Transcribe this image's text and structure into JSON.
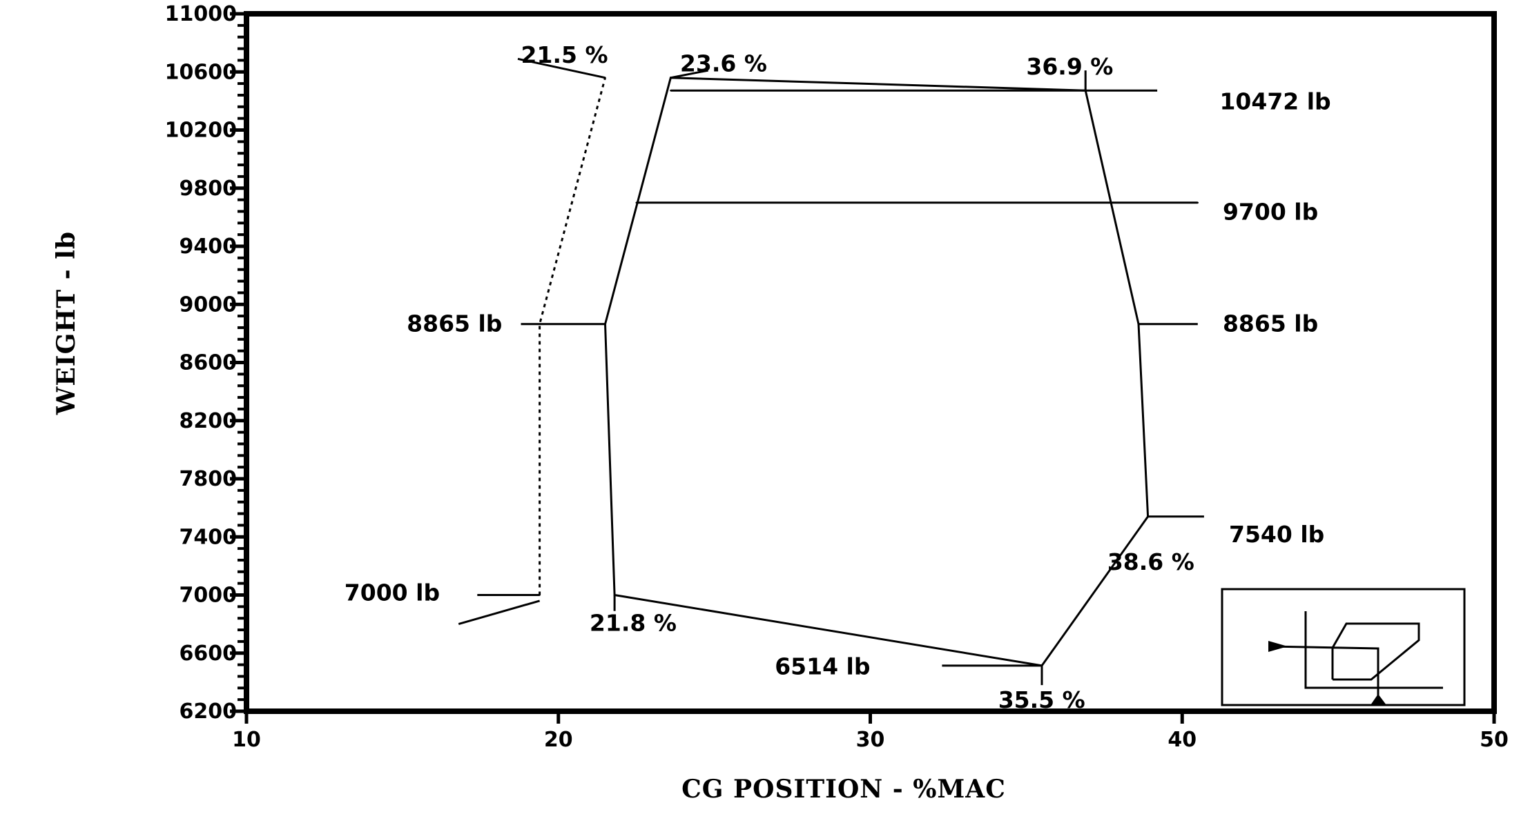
{
  "chart_data": {
    "type": "line",
    "xlabel": "CG POSITION - %MAC",
    "ylabel": "WEIGHT - lb",
    "xlim": [
      10,
      50
    ],
    "ylim": [
      6200,
      11000
    ],
    "x_ticks": [
      "10",
      "20",
      "30",
      "40",
      "50"
    ],
    "y_ticks": [
      "6200",
      "6600",
      "7000",
      "7400",
      "7800",
      "8200",
      "8600",
      "9000",
      "9400",
      "9800",
      "10200",
      "10600",
      "11000"
    ],
    "grid": false,
    "series": [
      {
        "style": "solid",
        "points": [
          {
            "x": 21.5,
            "y": 8865
          },
          {
            "x": 23.6,
            "y": 10560
          },
          {
            "x": 36.9,
            "y": 10472
          },
          {
            "x": 38.6,
            "y": 8865
          },
          {
            "x": 38.9,
            "y": 7540
          },
          {
            "x": 35.5,
            "y": 6514
          },
          {
            "x": 21.8,
            "y": 7000
          },
          {
            "x": 21.5,
            "y": 8865
          }
        ]
      },
      {
        "style": "dotted",
        "points": [
          {
            "x": 19.4,
            "y": 7000
          },
          {
            "x": 19.4,
            "y": 8865
          },
          {
            "x": 21.5,
            "y": 10560
          }
        ]
      },
      {
        "style": "solid",
        "points": [
          {
            "x": 23.6,
            "y": 10472
          },
          {
            "x": 36.9,
            "y": 10472
          }
        ]
      },
      {
        "style": "solid",
        "points": [
          {
            "x": 22.5,
            "y": 9700
          },
          {
            "x": 40.5,
            "y": 9700
          }
        ]
      }
    ],
    "annotations": [
      {
        "id": "a215",
        "text": "21.5 %",
        "x": 18.8,
        "y": 10720,
        "anchor": "start"
      },
      {
        "id": "a236",
        "text": "23.6 %",
        "x": 23.9,
        "y": 10660,
        "anchor": "start"
      },
      {
        "id": "a369",
        "text": "36.9 %",
        "x": 35.0,
        "y": 10640,
        "anchor": "start"
      },
      {
        "id": "a10472",
        "text": "10472 lb",
        "x": 41.2,
        "y": 10400,
        "anchor": "start"
      },
      {
        "id": "a9700",
        "text": "9700 lb",
        "x": 41.3,
        "y": 9640,
        "anchor": "start"
      },
      {
        "id": "a8865l",
        "text": "8865 lb",
        "x": 18.2,
        "y": 8870,
        "anchor": "end"
      },
      {
        "id": "a8865r",
        "text": "8865 lb",
        "x": 41.3,
        "y": 8870,
        "anchor": "start"
      },
      {
        "id": "a7540",
        "text": "7540 lb",
        "x": 41.5,
        "y": 7420,
        "anchor": "start"
      },
      {
        "id": "a386",
        "text": "38.6 %",
        "x": 37.6,
        "y": 7230,
        "anchor": "start"
      },
      {
        "id": "a7000",
        "text": "7000 lb",
        "x": 16.2,
        "y": 7020,
        "anchor": "end"
      },
      {
        "id": "a218",
        "text": "21.8 %",
        "x": 21.0,
        "y": 6810,
        "anchor": "start"
      },
      {
        "id": "a6514",
        "text": "6514 lb",
        "x": 30.0,
        "y": 6510,
        "anchor": "end"
      },
      {
        "id": "a355",
        "text": "35.5 %",
        "x": 34.1,
        "y": 6280,
        "anchor": "start"
      }
    ],
    "leaders": [
      {
        "style": "solid",
        "points": [
          {
            "x": 18.7,
            "y": 10690
          },
          {
            "x": 21.5,
            "y": 10560
          }
        ]
      },
      {
        "style": "solid",
        "points": [
          {
            "x": 23.6,
            "y": 10560
          },
          {
            "x": 24.8,
            "y": 10610
          }
        ]
      },
      {
        "style": "solid",
        "points": [
          {
            "x": 36.9,
            "y": 10472
          },
          {
            "x": 36.9,
            "y": 10610
          }
        ]
      },
      {
        "style": "solid",
        "points": [
          {
            "x": 36.9,
            "y": 10472
          },
          {
            "x": 39.2,
            "y": 10472
          }
        ]
      },
      {
        "style": "solid",
        "points": [
          {
            "x": 38.6,
            "y": 8865
          },
          {
            "x": 40.5,
            "y": 8865
          }
        ]
      },
      {
        "style": "solid",
        "points": [
          {
            "x": 38.9,
            "y": 7540
          },
          {
            "x": 40.7,
            "y": 7540
          }
        ]
      },
      {
        "style": "solid",
        "points": [
          {
            "x": 18.8,
            "y": 8865
          },
          {
            "x": 21.5,
            "y": 8865
          }
        ]
      },
      {
        "style": "solid",
        "points": [
          {
            "x": 17.4,
            "y": 7000
          },
          {
            "x": 19.4,
            "y": 7000
          }
        ]
      },
      {
        "style": "solid",
        "points": [
          {
            "x": 16.8,
            "y": 6800
          },
          {
            "x": 19.4,
            "y": 6960
          }
        ]
      },
      {
        "style": "solid",
        "points": [
          {
            "x": 21.8,
            "y": 7000
          },
          {
            "x": 21.8,
            "y": 6890
          }
        ]
      },
      {
        "style": "solid",
        "points": [
          {
            "x": 32.3,
            "y": 6514
          },
          {
            "x": 35.5,
            "y": 6514
          }
        ]
      },
      {
        "style": "solid",
        "points": [
          {
            "x": 35.5,
            "y": 6514
          },
          {
            "x": 35.5,
            "y": 6380
          }
        ]
      }
    ],
    "inset": "envelope-outline-sketch"
  }
}
